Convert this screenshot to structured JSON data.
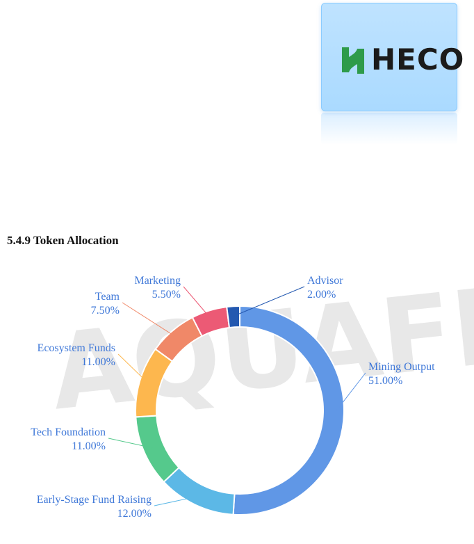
{
  "logo": {
    "text": "HECO",
    "mark_color": "#2e9b4a",
    "background": "#bfe3ff"
  },
  "section": {
    "title": "5.4.9 Token Allocation"
  },
  "watermark": {
    "text": "AQUAFEE"
  },
  "chart_data": {
    "type": "pie",
    "variant": "donut",
    "title": "",
    "legend": "none",
    "slices": [
      {
        "label": "Mining Output",
        "value": 51.0,
        "display": "51.00%",
        "color": "#6097e6"
      },
      {
        "label": "Early-Stage Fund Raising",
        "value": 12.0,
        "display": "12.00%",
        "color": "#5cb8e6"
      },
      {
        "label": "Tech Foundation",
        "value": 11.0,
        "display": "11.00%",
        "color": "#55c98c"
      },
      {
        "label": "Ecosystem Funds",
        "value": 11.0,
        "display": "11.00%",
        "color": "#fdb74e"
      },
      {
        "label": "Team",
        "value": 7.5,
        "display": "7.50%",
        "color": "#f08868"
      },
      {
        "label": "Marketing",
        "value": 5.5,
        "display": "5.50%",
        "color": "#ec5a75"
      },
      {
        "label": "Advisor",
        "value": 2.0,
        "display": "2.00%",
        "color": "#2358b0"
      }
    ]
  }
}
